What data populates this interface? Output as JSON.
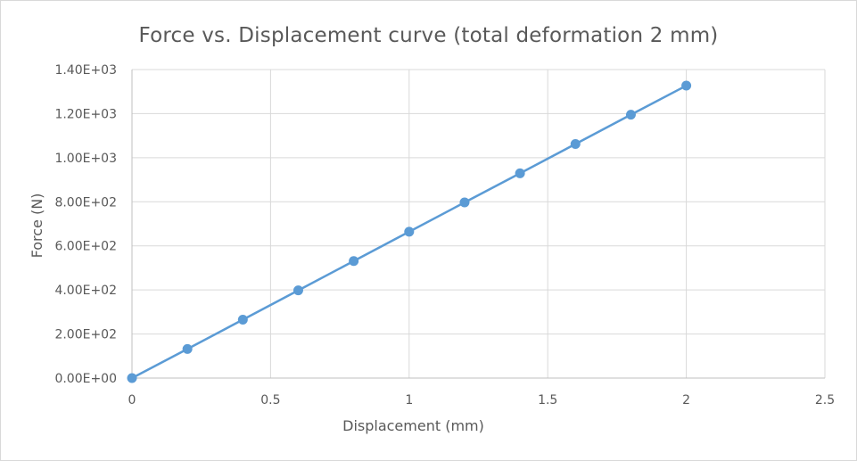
{
  "chart_data": {
    "type": "line",
    "title": "Force vs. Displacement curve (total deformation 2 mm)",
    "xlabel": "Displacement (mm)",
    "ylabel": "Force (N)",
    "xlim": [
      0,
      2.5
    ],
    "ylim": [
      0,
      1400
    ],
    "x_ticks": [
      0,
      0.5,
      1,
      1.5,
      2,
      2.5
    ],
    "x_tick_labels": [
      "0",
      "0.5",
      "1",
      "1.5",
      "2",
      "2.5"
    ],
    "y_ticks": [
      0,
      200,
      400,
      600,
      800,
      1000,
      1200,
      1400
    ],
    "y_tick_labels": [
      "0.00E+00",
      "2.00E+02",
      "4.00E+02",
      "6.00E+02",
      "8.00E+02",
      "1.00E+03",
      "1.20E+03",
      "1.40E+03"
    ],
    "grid": true,
    "legend": "none",
    "series_color": "#5b9bd5",
    "series": [
      {
        "x": [
          0,
          0.2,
          0.4,
          0.6,
          0.8,
          1.0,
          1.2,
          1.4,
          1.6,
          1.8,
          2.0
        ],
        "values": [
          0,
          132,
          265,
          398,
          531,
          664,
          797,
          929,
          1062,
          1195,
          1327
        ]
      }
    ]
  }
}
